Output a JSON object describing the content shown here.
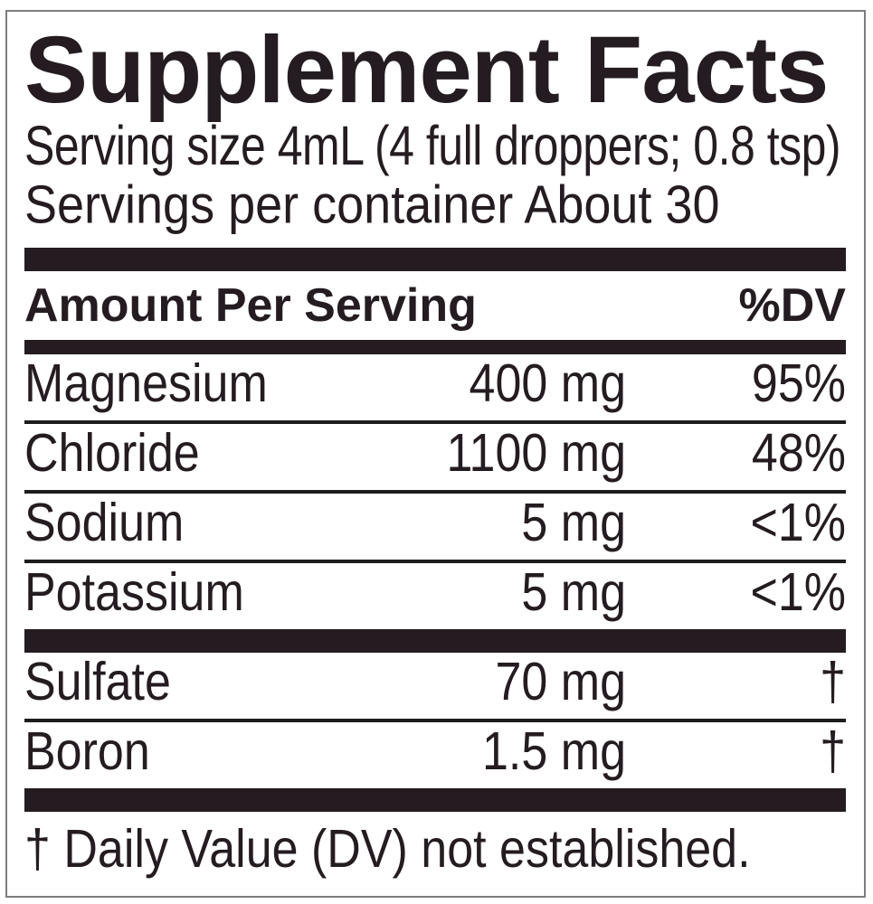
{
  "theme": {
    "text": "#241c21",
    "bar": "#241c21",
    "line": "#1d1d1d",
    "border": "#7d7d7d",
    "bg": "#ffffff"
  },
  "label": {
    "title": "Supplement Facts",
    "serving_size": "Serving size 4mL (4 full droppers; 0.8 tsp)",
    "servings_per_container": "Servings per container About 30",
    "header": {
      "amount_label": "Amount Per Serving",
      "dv_label": "%DV"
    },
    "main_rows": [
      {
        "name": "Magnesium",
        "amount": "400 mg",
        "dv": "95%"
      },
      {
        "name": "Chloride",
        "amount": "1100 mg",
        "dv": "48%"
      },
      {
        "name": "Sodium",
        "amount": "5 mg",
        "dv": "<1%"
      },
      {
        "name": "Potassium",
        "amount": "5 mg",
        "dv": "<1%"
      }
    ],
    "secondary_rows": [
      {
        "name": "Sulfate",
        "amount": "70 mg",
        "dv": "†"
      },
      {
        "name": "Boron",
        "amount": "1.5 mg",
        "dv": "†"
      }
    ],
    "footnote": "† Daily Value (DV) not established."
  }
}
